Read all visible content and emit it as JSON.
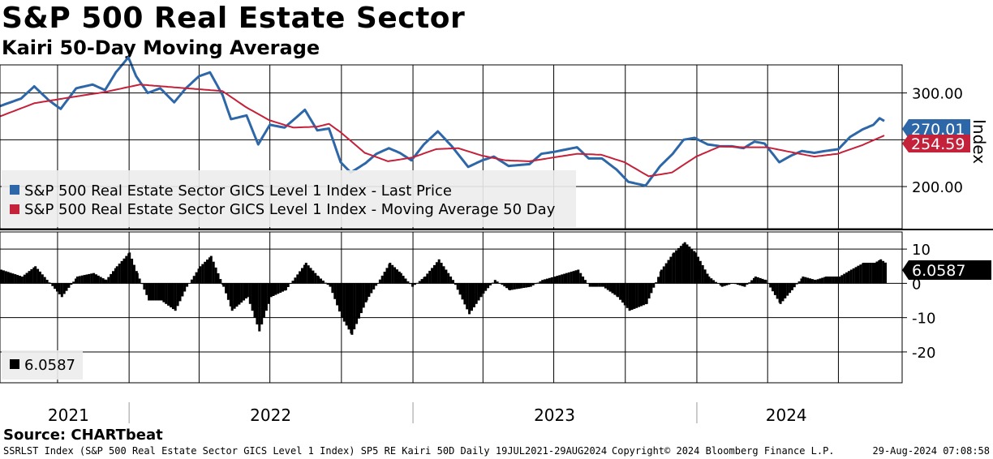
{
  "header": {
    "title": "S&P 500 Real Estate Sector",
    "subtitle": "Kairi 50-Day Moving Average"
  },
  "chart_data": [
    {
      "type": "line",
      "panel": "upper",
      "ylabel": "Index",
      "ylim": [
        155,
        330
      ],
      "yticks": [
        200,
        300
      ],
      "ytick_labels": [
        "200.00",
        "300.00"
      ],
      "grid": true,
      "legend_position": "bottom-left",
      "x_range": [
        "2021-07-19",
        "2024-08-29"
      ],
      "series": [
        {
          "name": "S&P 500 Real Estate Sector GICS Level 1 Index - Last Price",
          "color": "#2e67a8",
          "last_value": 270.01,
          "last_label": "270.01",
          "points": [
            [
              "2021-07-19",
              286
            ],
            [
              "2021-08-15",
              294
            ],
            [
              "2021-09-01",
              307
            ],
            [
              "2021-09-20",
              292
            ],
            [
              "2021-10-05",
              283
            ],
            [
              "2021-10-25",
              305
            ],
            [
              "2021-11-15",
              309
            ],
            [
              "2021-12-01",
              303
            ],
            [
              "2021-12-15",
              322
            ],
            [
              "2021-12-31",
              338
            ],
            [
              "2022-01-10",
              318
            ],
            [
              "2022-01-25",
              300
            ],
            [
              "2022-02-10",
              305
            ],
            [
              "2022-02-28",
              290
            ],
            [
              "2022-03-15",
              305
            ],
            [
              "2022-04-01",
              318
            ],
            [
              "2022-04-15",
              322
            ],
            [
              "2022-05-01",
              298
            ],
            [
              "2022-05-12",
              272
            ],
            [
              "2022-06-01",
              276
            ],
            [
              "2022-06-16",
              245
            ],
            [
              "2022-07-01",
              266
            ],
            [
              "2022-07-20",
              263
            ],
            [
              "2022-08-15",
              282
            ],
            [
              "2022-08-31",
              260
            ],
            [
              "2022-09-15",
              262
            ],
            [
              "2022-09-30",
              226
            ],
            [
              "2022-10-13",
              215
            ],
            [
              "2022-11-01",
              225
            ],
            [
              "2022-11-15",
              235
            ],
            [
              "2022-12-01",
              241
            ],
            [
              "2022-12-15",
              236
            ],
            [
              "2022-12-30",
              228
            ],
            [
              "2023-01-15",
              245
            ],
            [
              "2023-02-02",
              259
            ],
            [
              "2023-02-20",
              243
            ],
            [
              "2023-03-13",
              221
            ],
            [
              "2023-03-31",
              228
            ],
            [
              "2023-04-15",
              232
            ],
            [
              "2023-05-04",
              222
            ],
            [
              "2023-05-31",
              224
            ],
            [
              "2023-06-15",
              235
            ],
            [
              "2023-07-01",
              237
            ],
            [
              "2023-07-31",
              242
            ],
            [
              "2023-08-15",
              230
            ],
            [
              "2023-09-01",
              230
            ],
            [
              "2023-09-20",
              218
            ],
            [
              "2023-10-05",
              205
            ],
            [
              "2023-10-27",
              201
            ],
            [
              "2023-11-15",
              222
            ],
            [
              "2023-12-01",
              235
            ],
            [
              "2023-12-15",
              250
            ],
            [
              "2023-12-29",
              252
            ],
            [
              "2024-01-15",
              245
            ],
            [
              "2024-02-01",
              243
            ],
            [
              "2024-02-15",
              243
            ],
            [
              "2024-03-01",
              241
            ],
            [
              "2024-03-15",
              248
            ],
            [
              "2024-03-28",
              246
            ],
            [
              "2024-04-16",
              226
            ],
            [
              "2024-05-01",
              233
            ],
            [
              "2024-05-15",
              238
            ],
            [
              "2024-05-31",
              236
            ],
            [
              "2024-06-14",
              238
            ],
            [
              "2024-07-01",
              240
            ],
            [
              "2024-07-16",
              253
            ],
            [
              "2024-08-01",
              261
            ],
            [
              "2024-08-15",
              266
            ],
            [
              "2024-08-23",
              273
            ],
            [
              "2024-08-29",
              270.01
            ]
          ]
        },
        {
          "name": "S&P 500 Real Estate Sector GICS Level 1 Index - Moving Average 50 Day",
          "color": "#c4213a",
          "last_value": 254.59,
          "last_label": "254.59",
          "points": [
            [
              "2021-07-19",
              275
            ],
            [
              "2021-09-01",
              289
            ],
            [
              "2021-10-15",
              295
            ],
            [
              "2021-12-01",
              301
            ],
            [
              "2022-01-15",
              309
            ],
            [
              "2022-02-28",
              306
            ],
            [
              "2022-04-01",
              304
            ],
            [
              "2022-05-01",
              302
            ],
            [
              "2022-05-31",
              285
            ],
            [
              "2022-06-30",
              271
            ],
            [
              "2022-07-31",
              263
            ],
            [
              "2022-08-31",
              264
            ],
            [
              "2022-09-15",
              267
            ],
            [
              "2022-09-30",
              258
            ],
            [
              "2022-10-31",
              236
            ],
            [
              "2022-11-30",
              227
            ],
            [
              "2022-12-31",
              231
            ],
            [
              "2023-01-31",
              240
            ],
            [
              "2023-02-28",
              241
            ],
            [
              "2023-03-31",
              233
            ],
            [
              "2023-04-30",
              228
            ],
            [
              "2023-05-31",
              227
            ],
            [
              "2023-06-30",
              231
            ],
            [
              "2023-07-31",
              235
            ],
            [
              "2023-08-31",
              234
            ],
            [
              "2023-09-30",
              226
            ],
            [
              "2023-10-31",
              211
            ],
            [
              "2023-11-30",
              215
            ],
            [
              "2023-12-31",
              232
            ],
            [
              "2024-01-31",
              243
            ],
            [
              "2024-02-29",
              242
            ],
            [
              "2024-03-31",
              242
            ],
            [
              "2024-04-30",
              237
            ],
            [
              "2024-05-31",
              232
            ],
            [
              "2024-06-30",
              235
            ],
            [
              "2024-07-31",
              244
            ],
            [
              "2024-08-29",
              254.59
            ]
          ]
        }
      ]
    },
    {
      "type": "bar",
      "panel": "lower",
      "ylim": [
        -29,
        15
      ],
      "yticks": [
        10,
        0,
        -10,
        -20
      ],
      "ytick_labels": [
        "10",
        "0",
        "-10",
        "-20"
      ],
      "grid": true,
      "legend_position": "bottom-left",
      "x_range": [
        "2021-07-19",
        "2024-08-29"
      ],
      "series": [
        {
          "name": "",
          "color": "#000000",
          "last_value": 6.0587,
          "last_label": "6.0587",
          "legend_label": "6.0587",
          "points": [
            [
              "2021-07-19",
              4
            ],
            [
              "2021-08-15",
              2
            ],
            [
              "2021-09-01",
              5
            ],
            [
              "2021-09-20",
              0
            ],
            [
              "2021-10-05",
              -4
            ],
            [
              "2021-10-25",
              2
            ],
            [
              "2021-11-15",
              3
            ],
            [
              "2021-12-01",
              1
            ],
            [
              "2021-12-15",
              5
            ],
            [
              "2021-12-31",
              9
            ],
            [
              "2022-01-10",
              3
            ],
            [
              "2022-01-25",
              -5
            ],
            [
              "2022-02-10",
              -5
            ],
            [
              "2022-02-28",
              -8
            ],
            [
              "2022-03-15",
              -1
            ],
            [
              "2022-04-01",
              5
            ],
            [
              "2022-04-15",
              8
            ],
            [
              "2022-05-01",
              -1
            ],
            [
              "2022-05-12",
              -8
            ],
            [
              "2022-06-01",
              -4
            ],
            [
              "2022-06-16",
              -14
            ],
            [
              "2022-07-01",
              -4
            ],
            [
              "2022-07-20",
              -2
            ],
            [
              "2022-08-15",
              6
            ],
            [
              "2022-08-31",
              2
            ],
            [
              "2022-09-15",
              -1
            ],
            [
              "2022-09-30",
              -10
            ],
            [
              "2022-10-13",
              -15
            ],
            [
              "2022-11-01",
              -5
            ],
            [
              "2022-11-15",
              0
            ],
            [
              "2022-12-01",
              6
            ],
            [
              "2022-12-15",
              3
            ],
            [
              "2022-12-30",
              -1
            ],
            [
              "2023-01-15",
              2
            ],
            [
              "2023-02-02",
              7
            ],
            [
              "2023-02-20",
              1
            ],
            [
              "2023-03-13",
              -9
            ],
            [
              "2023-03-31",
              -3
            ],
            [
              "2023-04-15",
              1
            ],
            [
              "2023-05-04",
              -2
            ],
            [
              "2023-05-31",
              -1
            ],
            [
              "2023-06-15",
              1
            ],
            [
              "2023-07-01",
              2
            ],
            [
              "2023-07-31",
              4
            ],
            [
              "2023-08-15",
              -1
            ],
            [
              "2023-09-01",
              -1
            ],
            [
              "2023-09-20",
              -4
            ],
            [
              "2023-10-05",
              -8
            ],
            [
              "2023-10-27",
              -6
            ],
            [
              "2023-11-15",
              4
            ],
            [
              "2023-12-01",
              9
            ],
            [
              "2023-12-15",
              12
            ],
            [
              "2023-12-29",
              9
            ],
            [
              "2024-01-15",
              2
            ],
            [
              "2024-02-01",
              -1
            ],
            [
              "2024-02-15",
              0
            ],
            [
              "2024-03-01",
              -1
            ],
            [
              "2024-03-15",
              2
            ],
            [
              "2024-03-28",
              1
            ],
            [
              "2024-04-16",
              -6
            ],
            [
              "2024-05-01",
              -2
            ],
            [
              "2024-05-15",
              2
            ],
            [
              "2024-05-31",
              1
            ],
            [
              "2024-06-14",
              2
            ],
            [
              "2024-07-01",
              2
            ],
            [
              "2024-07-16",
              4
            ],
            [
              "2024-08-01",
              6
            ],
            [
              "2024-08-15",
              6
            ],
            [
              "2024-08-23",
              7
            ],
            [
              "2024-08-29",
              6.0587
            ]
          ]
        }
      ]
    }
  ],
  "x_axis": {
    "year_labels": [
      "2021",
      "2022",
      "2023",
      "2024"
    ],
    "year_dates": [
      "2021-10-15",
      "2022-07-02",
      "2023-07-02",
      "2024-04-25"
    ],
    "year_starts": [
      "2022-01-01",
      "2023-01-01",
      "2024-01-01"
    ]
  },
  "footer": {
    "source": "Source: CHARTbeat",
    "ticker_info": "SSRLST Index (S&P 500 Real Estate Sector GICS Level 1 Index) SP5 RE Kairi 50D  Daily 19JUL2021-29AUG2024",
    "copyright": "Copyright© 2024 Bloomberg Finance L.P.",
    "timestamp": "29-Aug-2024 07:08:58"
  }
}
